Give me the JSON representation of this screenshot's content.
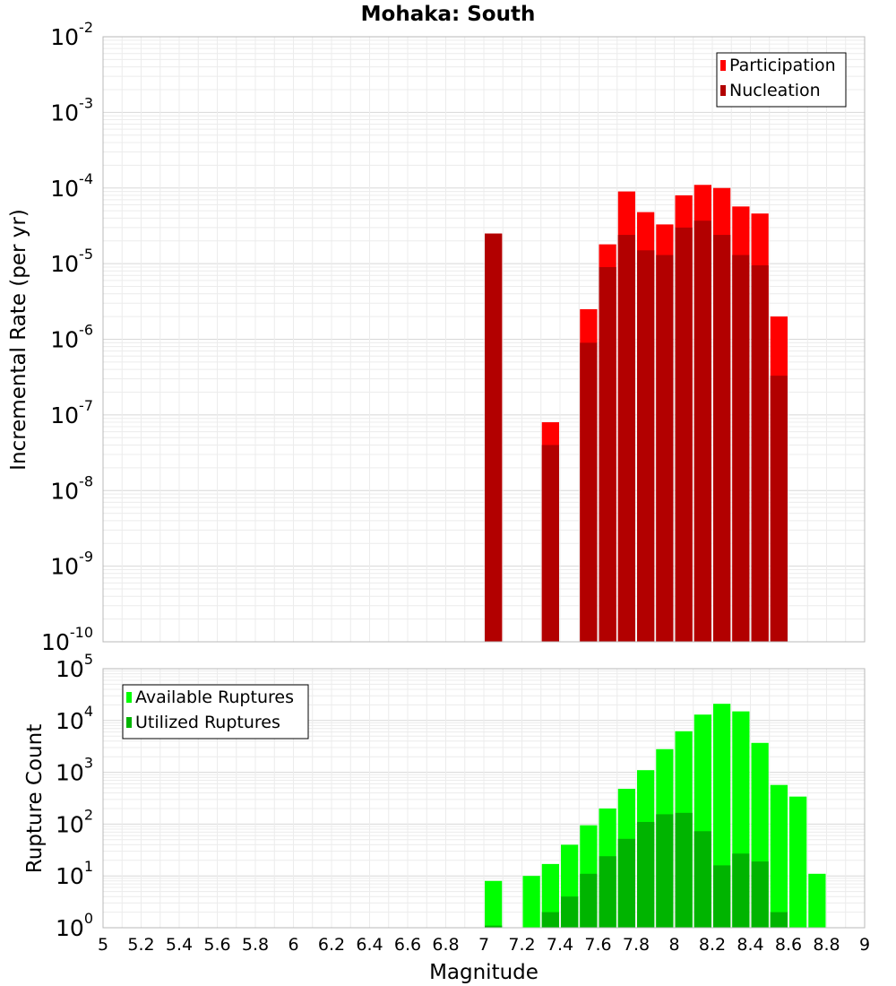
{
  "chart_data": [
    {
      "type": "bar",
      "title": "Mohaka: South",
      "ylabel": "Incremental Rate (per yr)",
      "xlabel": "",
      "x_range": [
        5,
        9
      ],
      "y_log_exponent_range": [
        -10,
        -2
      ],
      "y_scale": "log",
      "grid": true,
      "legend_position": "top-right",
      "bar_width": 0.1,
      "x": [
        7.05,
        7.35,
        7.55,
        7.65,
        7.75,
        7.85,
        7.95,
        8.05,
        8.15,
        8.25,
        8.35,
        8.45,
        8.55
      ],
      "series": [
        {
          "name": "Participation",
          "color": "#ff0000",
          "values": [
            2.5e-05,
            8e-08,
            2.5e-06,
            1.8e-05,
            9e-05,
            4.8e-05,
            3.3e-05,
            8e-05,
            0.00011,
            0.0001,
            5.7e-05,
            4.6e-05,
            2e-06
          ]
        },
        {
          "name": "Nucleation",
          "color": "#b20000",
          "values": [
            2.5e-05,
            4e-08,
            9e-07,
            9e-06,
            2.4e-05,
            1.5e-05,
            1.3e-05,
            3e-05,
            3.7e-05,
            2.4e-05,
            1.3e-05,
            9.5e-06,
            3.3e-07
          ]
        }
      ]
    },
    {
      "type": "bar",
      "title": "",
      "ylabel": "Rupture Count",
      "xlabel": "Magnitude",
      "x_range": [
        5,
        9
      ],
      "y_log_exponent_range": [
        0,
        5
      ],
      "y_scale": "log",
      "grid": true,
      "legend_position": "top-left",
      "bar_width": 0.1,
      "x_ticks": [
        "5",
        "5.2",
        "5.4",
        "5.6",
        "5.8",
        "6",
        "6.2",
        "6.4",
        "6.6",
        "6.8",
        "7",
        "7.2",
        "7.4",
        "7.6",
        "7.8",
        "8",
        "8.2",
        "8.4",
        "8.6",
        "8.8",
        "9"
      ],
      "x": [
        7.05,
        7.25,
        7.35,
        7.45,
        7.55,
        7.65,
        7.75,
        7.85,
        7.95,
        8.05,
        8.15,
        8.25,
        8.35,
        8.45,
        8.55,
        8.65,
        8.75
      ],
      "series": [
        {
          "name": "Available Ruptures",
          "color": "#00ff00",
          "values": [
            8,
            10,
            17,
            40,
            95,
            200,
            480,
            1100,
            2800,
            6200,
            13000,
            21000,
            15000,
            3700,
            570,
            340,
            11
          ]
        },
        {
          "name": "Utilized Ruptures",
          "color": "#00b400",
          "values": [
            1.1,
            0,
            2,
            4,
            11,
            24,
            52,
            110,
            155,
            165,
            73,
            16,
            27,
            19,
            2,
            0,
            0
          ]
        }
      ]
    }
  ]
}
